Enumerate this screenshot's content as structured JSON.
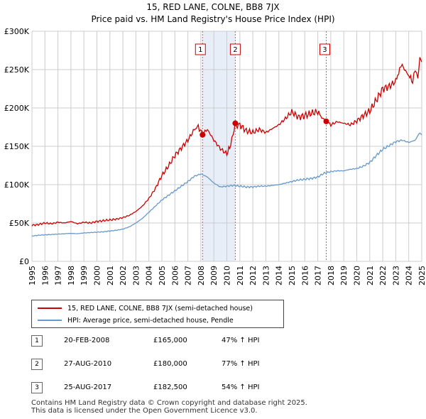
{
  "header": {
    "title_line1": "15, RED LANE, COLNE, BB8 7JX",
    "title_line2": "Price paid vs. HM Land Registry's House Price Index (HPI)"
  },
  "colors": {
    "property": "#cc0000",
    "hpi": "#6699cc",
    "vline": "#e05050",
    "band": "#e8eef8",
    "grid": "#cccccc"
  },
  "chart_data": {
    "type": "line",
    "title": "15, RED LANE, COLNE, BB8 7JX — Price paid vs. HM Land Registry's House Price Index (HPI)",
    "xlabel": "",
    "ylabel": "",
    "xlim": [
      1995.0,
      2025.0
    ],
    "ylim": [
      0,
      300000
    ],
    "y_ticks": [
      0,
      50000,
      100000,
      150000,
      200000,
      250000,
      300000
    ],
    "y_tick_labels": [
      "£0",
      "£50K",
      "£100K",
      "£150K",
      "£200K",
      "£250K",
      "£300K"
    ],
    "x_tick_labels": [
      "1995",
      "1996",
      "1997",
      "1998",
      "1999",
      "2000",
      "2001",
      "2002",
      "2003",
      "2004",
      "2005",
      "2006",
      "2007",
      "2008",
      "2009",
      "2010",
      "2011",
      "2012",
      "2013",
      "2014",
      "2015",
      "2016",
      "2017",
      "2018",
      "2019",
      "2020",
      "2021",
      "2022",
      "2023",
      "2024",
      "2025"
    ],
    "grid": true,
    "legend_position": "below",
    "series": [
      {
        "name": "15, RED LANE, COLNE, BB8 7JX (semi-detached house)",
        "color": "#cc0000",
        "x": [
          1995.0,
          1995.5,
          1996.0,
          1996.5,
          1997.0,
          1997.5,
          1998.0,
          1998.5,
          1999.0,
          1999.5,
          2000.0,
          2000.5,
          2001.0,
          2001.5,
          2002.0,
          2002.5,
          2003.0,
          2003.5,
          2004.0,
          2004.5,
          2005.0,
          2005.5,
          2006.0,
          2006.5,
          2007.0,
          2007.5,
          2007.8,
          2008.13,
          2008.5,
          2009.0,
          2009.5,
          2010.0,
          2010.3,
          2010.65,
          2010.8,
          2011.0,
          2011.5,
          2012.0,
          2012.5,
          2013.0,
          2013.5,
          2014.0,
          2014.5,
          2015.0,
          2015.5,
          2016.0,
          2016.5,
          2017.0,
          2017.3,
          2017.65,
          2018.0,
          2018.5,
          2019.0,
          2019.5,
          2020.0,
          2020.5,
          2021.0,
          2021.5,
          2022.0,
          2022.5,
          2023.0,
          2023.3,
          2023.5,
          2024.0,
          2024.3,
          2024.5,
          2024.7,
          2024.85,
          2025.0
        ],
        "values": [
          47000,
          48000,
          50000,
          49000,
          51000,
          50000,
          52000,
          49000,
          51000,
          50000,
          52000,
          53000,
          54000,
          55000,
          57000,
          60000,
          65000,
          72000,
          82000,
          95000,
          112000,
          124000,
          138000,
          148000,
          158000,
          172000,
          176000,
          165000,
          172000,
          158000,
          147000,
          140000,
          152000,
          180000,
          175000,
          178000,
          170000,
          168000,
          172000,
          168000,
          173000,
          178000,
          186000,
          195000,
          188000,
          190000,
          193000,
          195000,
          188000,
          182500,
          178000,
          182000,
          180000,
          178000,
          183000,
          190000,
          196000,
          210000,
          225000,
          228000,
          235000,
          250000,
          255000,
          242000,
          235000,
          248000,
          240000,
          265000,
          260000
        ]
      },
      {
        "name": "HPI: Average price, semi-detached house, Pendle",
        "color": "#6699cc",
        "x": [
          1995.0,
          1995.5,
          1996.0,
          1996.5,
          1997.0,
          1997.5,
          1998.0,
          1998.5,
          1999.0,
          1999.5,
          2000.0,
          2000.5,
          2001.0,
          2001.5,
          2002.0,
          2002.5,
          2003.0,
          2003.5,
          2004.0,
          2004.5,
          2005.0,
          2005.5,
          2006.0,
          2006.5,
          2007.0,
          2007.5,
          2008.0,
          2008.5,
          2009.0,
          2009.5,
          2010.0,
          2010.5,
          2011.0,
          2011.5,
          2012.0,
          2012.5,
          2013.0,
          2013.5,
          2014.0,
          2014.5,
          2015.0,
          2015.5,
          2016.0,
          2016.5,
          2017.0,
          2017.5,
          2018.0,
          2018.5,
          2019.0,
          2019.5,
          2020.0,
          2020.5,
          2021.0,
          2021.5,
          2022.0,
          2022.5,
          2023.0,
          2023.5,
          2024.0,
          2024.5,
          2024.85,
          2025.0
        ],
        "values": [
          33000,
          34000,
          34500,
          35000,
          35500,
          36000,
          36500,
          36000,
          37000,
          37500,
          38000,
          38500,
          39500,
          40500,
          42000,
          45000,
          50000,
          56000,
          64000,
          72000,
          80000,
          86000,
          92000,
          98000,
          104000,
          111000,
          114000,
          110000,
          102000,
          97000,
          98000,
          99000,
          98000,
          97000,
          97000,
          98000,
          98000,
          99000,
          100000,
          102000,
          104000,
          106000,
          107000,
          108000,
          110000,
          115000,
          117000,
          118000,
          118000,
          120000,
          121000,
          124000,
          129000,
          138000,
          146000,
          151000,
          156000,
          158000,
          155000,
          158000,
          168000,
          165000
        ]
      }
    ],
    "sales": [
      {
        "label": "1",
        "x": 2008.13,
        "value": 165000
      },
      {
        "label": "2",
        "x": 2010.65,
        "value": 180000
      },
      {
        "label": "3",
        "x": 2017.65,
        "value": 182500
      }
    ]
  },
  "legend": {
    "property_label": "15, RED LANE, COLNE, BB8 7JX (semi-detached house)",
    "hpi_label": "HPI: Average price, semi-detached house, Pendle"
  },
  "sales_table": [
    {
      "num": "1",
      "date": "20-FEB-2008",
      "price": "£165,000",
      "hpi": "47% ↑ HPI"
    },
    {
      "num": "2",
      "date": "27-AUG-2010",
      "price": "£180,000",
      "hpi": "77% ↑ HPI"
    },
    {
      "num": "3",
      "date": "25-AUG-2017",
      "price": "£182,500",
      "hpi": "54% ↑ HPI"
    }
  ],
  "footer": {
    "line1": "Contains HM Land Registry data © Crown copyright and database right 2025.",
    "line2": "This data is licensed under the Open Government Licence v3.0."
  }
}
